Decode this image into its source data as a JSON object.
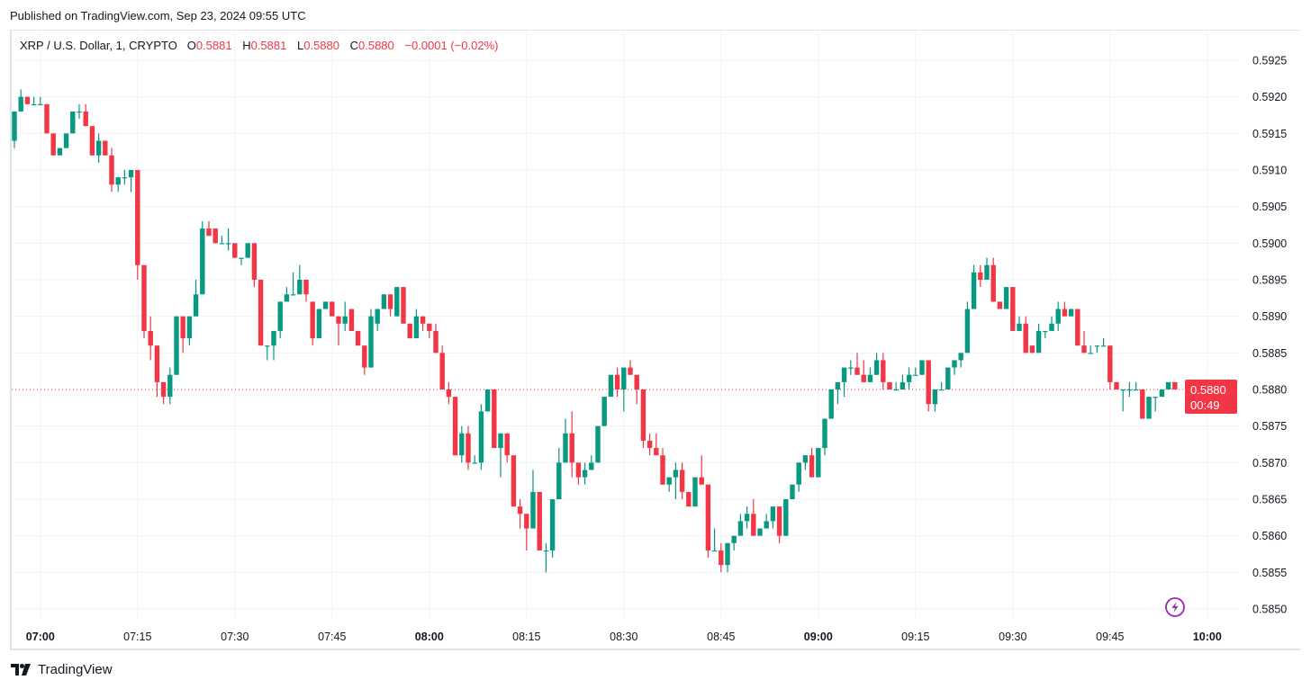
{
  "published": "Published on TradingView.com, Sep 23, 2024 09:55 UTC",
  "legend": {
    "symbol": "XRP / U.S. Dollar, 1, CRYPTO",
    "o_label": "O",
    "o": "0.5881",
    "h_label": "H",
    "h": "0.5881",
    "l_label": "L",
    "l": "0.5880",
    "c_label": "C",
    "c": "0.5880",
    "change": "−0.0001 (−0.02%)"
  },
  "last_price": {
    "value": "0.5880",
    "countdown": "00:49"
  },
  "brand": "TradingView",
  "colors": {
    "up": "#089981",
    "down": "#f23645",
    "grid": "#f0f3fa",
    "lightning": "#9c27b0"
  },
  "icons": {
    "lightning": "lightning-icon",
    "logo": "tradingview-logo-icon"
  },
  "chart_data": {
    "type": "candlestick",
    "interval": "1",
    "grid": true,
    "ylim": [
      0.585,
      0.5925
    ],
    "y_ticks": [
      "0.5925",
      "0.5920",
      "0.5915",
      "0.5910",
      "0.5905",
      "0.5900",
      "0.5895",
      "0.5890",
      "0.5885",
      "0.5880",
      "0.5875",
      "0.5870",
      "0.5865",
      "0.5860",
      "0.5855",
      "0.5850"
    ],
    "x_ticks": [
      {
        "label": "07:00",
        "bold": true
      },
      {
        "label": "07:15",
        "bold": false
      },
      {
        "label": "07:30",
        "bold": false
      },
      {
        "label": "07:45",
        "bold": false
      },
      {
        "label": "08:00",
        "bold": true
      },
      {
        "label": "08:15",
        "bold": false
      },
      {
        "label": "08:30",
        "bold": false
      },
      {
        "label": "08:45",
        "bold": false
      },
      {
        "label": "09:00",
        "bold": true
      },
      {
        "label": "09:15",
        "bold": false
      },
      {
        "label": "09:30",
        "bold": false
      },
      {
        "label": "09:45",
        "bold": false
      },
      {
        "label": "10:00",
        "bold": true
      }
    ],
    "columns": [
      "time",
      "open",
      "high",
      "low",
      "close"
    ],
    "candles": [
      [
        "06:56",
        0.5914,
        0.5918,
        0.5913,
        0.5918
      ],
      [
        "06:57",
        0.5918,
        0.5921,
        0.5918,
        0.592
      ],
      [
        "06:58",
        0.592,
        0.592,
        0.5919,
        0.5919
      ],
      [
        "06:59",
        0.5919,
        0.592,
        0.5919,
        0.5919
      ],
      [
        "07:00",
        0.5919,
        0.592,
        0.5919,
        0.5919
      ],
      [
        "07:01",
        0.5919,
        0.5919,
        0.5915,
        0.5915
      ],
      [
        "07:02",
        0.5915,
        0.5915,
        0.5912,
        0.5912
      ],
      [
        "07:03",
        0.5912,
        0.5913,
        0.5912,
        0.5913
      ],
      [
        "07:04",
        0.5913,
        0.5915,
        0.5913,
        0.5915
      ],
      [
        "07:05",
        0.5915,
        0.5918,
        0.5915,
        0.5918
      ],
      [
        "07:06",
        0.5918,
        0.5919,
        0.5917,
        0.5918
      ],
      [
        "07:07",
        0.5918,
        0.5919,
        0.5916,
        0.5916
      ],
      [
        "07:08",
        0.5916,
        0.5916,
        0.5912,
        0.5912
      ],
      [
        "07:09",
        0.5912,
        0.5915,
        0.5911,
        0.5914
      ],
      [
        "07:10",
        0.5914,
        0.5914,
        0.5912,
        0.5912
      ],
      [
        "07:11",
        0.5912,
        0.5913,
        0.5907,
        0.5908
      ],
      [
        "07:12",
        0.5908,
        0.5909,
        0.5907,
        0.5909
      ],
      [
        "07:13",
        0.5909,
        0.591,
        0.5908,
        0.5909
      ],
      [
        "07:14",
        0.5909,
        0.591,
        0.5907,
        0.591
      ],
      [
        "07:15",
        0.591,
        0.591,
        0.5895,
        0.5897
      ],
      [
        "07:16",
        0.5897,
        0.5897,
        0.5887,
        0.5888
      ],
      [
        "07:17",
        0.5888,
        0.589,
        0.5884,
        0.5886
      ],
      [
        "07:18",
        0.5886,
        0.5886,
        0.5879,
        0.5881
      ],
      [
        "07:19",
        0.5881,
        0.5881,
        0.5878,
        0.5879
      ],
      [
        "07:20",
        0.5879,
        0.5883,
        0.5878,
        0.5882
      ],
      [
        "07:21",
        0.5882,
        0.589,
        0.5882,
        0.589
      ],
      [
        "07:22",
        0.589,
        0.589,
        0.5885,
        0.5887
      ],
      [
        "07:23",
        0.5887,
        0.589,
        0.5886,
        0.589
      ],
      [
        "07:24",
        0.589,
        0.5895,
        0.589,
        0.5893
      ],
      [
        "07:25",
        0.5893,
        0.5903,
        0.5893,
        0.5902
      ],
      [
        "07:26",
        0.5902,
        0.5903,
        0.5901,
        0.5901
      ],
      [
        "07:27",
        0.5902,
        0.5902,
        0.59,
        0.59
      ],
      [
        "07:28",
        0.59,
        0.5901,
        0.59,
        0.59
      ],
      [
        "07:29",
        0.59,
        0.5902,
        0.5899,
        0.59
      ],
      [
        "07:30",
        0.59,
        0.59,
        0.5898,
        0.5898
      ],
      [
        "07:31",
        0.5898,
        0.5898,
        0.5897,
        0.5898
      ],
      [
        "07:32",
        0.5898,
        0.59,
        0.5898,
        0.59
      ],
      [
        "07:33",
        0.59,
        0.59,
        0.5894,
        0.5895
      ],
      [
        "07:34",
        0.5895,
        0.5895,
        0.5886,
        0.5886
      ],
      [
        "07:35",
        0.5886,
        0.5886,
        0.5884,
        0.5886
      ],
      [
        "07:36",
        0.5886,
        0.5888,
        0.5884,
        0.5888
      ],
      [
        "07:37",
        0.5888,
        0.5892,
        0.5887,
        0.5892
      ],
      [
        "07:38",
        0.5892,
        0.5894,
        0.5892,
        0.5893
      ],
      [
        "07:39",
        0.5893,
        0.5896,
        0.5893,
        0.5893
      ],
      [
        "07:40",
        0.5893,
        0.5897,
        0.5893,
        0.5895
      ],
      [
        "07:41",
        0.5895,
        0.5895,
        0.5892,
        0.5893
      ],
      [
        "07:42",
        0.5892,
        0.5892,
        0.5886,
        0.5887
      ],
      [
        "07:43",
        0.5887,
        0.5891,
        0.5887,
        0.5891
      ],
      [
        "07:44",
        0.5891,
        0.5892,
        0.5891,
        0.5892
      ],
      [
        "07:45",
        0.5892,
        0.5892,
        0.589,
        0.589
      ],
      [
        "07:46",
        0.589,
        0.589,
        0.5886,
        0.5889
      ],
      [
        "07:47",
        0.5889,
        0.5892,
        0.5888,
        0.589
      ],
      [
        "07:48",
        0.5891,
        0.5891,
        0.5888,
        0.5888
      ],
      [
        "07:49",
        0.5888,
        0.5888,
        0.5886,
        0.5886
      ],
      [
        "07:50",
        0.5886,
        0.5886,
        0.5882,
        0.5883
      ],
      [
        "07:51",
        0.5883,
        0.5891,
        0.5883,
        0.589
      ],
      [
        "07:52",
        0.5889,
        0.5891,
        0.5888,
        0.5891
      ],
      [
        "07:53",
        0.5891,
        0.5893,
        0.5891,
        0.5893
      ],
      [
        "07:54",
        0.5893,
        0.5893,
        0.589,
        0.5891
      ],
      [
        "07:55",
        0.589,
        0.5894,
        0.589,
        0.5894
      ],
      [
        "07:56",
        0.5894,
        0.5894,
        0.5889,
        0.5889
      ],
      [
        "07:57",
        0.5889,
        0.5889,
        0.5887,
        0.5887
      ],
      [
        "07:58",
        0.5887,
        0.5891,
        0.5887,
        0.589
      ],
      [
        "07:59",
        0.589,
        0.589,
        0.5888,
        0.5889
      ],
      [
        "08:00",
        0.5889,
        0.5889,
        0.5887,
        0.5888
      ],
      [
        "08:01",
        0.5888,
        0.5889,
        0.5885,
        0.5885
      ],
      [
        "08:02",
        0.5885,
        0.5886,
        0.588,
        0.588
      ],
      [
        "08:03",
        0.588,
        0.5881,
        0.5878,
        0.5879
      ],
      [
        "08:04",
        0.5879,
        0.5879,
        0.5871,
        0.5871
      ],
      [
        "08:05",
        0.5871,
        0.5875,
        0.587,
        0.5874
      ],
      [
        "08:06",
        0.5874,
        0.5875,
        0.5869,
        0.587
      ],
      [
        "08:07",
        0.587,
        0.5871,
        0.587,
        0.587
      ],
      [
        "08:08",
        0.587,
        0.5878,
        0.5869,
        0.5877
      ],
      [
        "08:09",
        0.5877,
        0.588,
        0.5877,
        0.588
      ],
      [
        "08:10",
        0.588,
        0.588,
        0.5872,
        0.5872
      ],
      [
        "08:11",
        0.5872,
        0.5874,
        0.5868,
        0.5874
      ],
      [
        "08:12",
        0.5874,
        0.5874,
        0.587,
        0.5871
      ],
      [
        "08:13",
        0.5871,
        0.5871,
        0.5864,
        0.5864
      ],
      [
        "08:14",
        0.5864,
        0.5865,
        0.5861,
        0.5863
      ],
      [
        "08:15",
        0.5863,
        0.5863,
        0.5858,
        0.5861
      ],
      [
        "08:16",
        0.5861,
        0.5869,
        0.5861,
        0.5866
      ],
      [
        "08:17",
        0.5866,
        0.5866,
        0.5858,
        0.5858
      ],
      [
        "08:18",
        0.5858,
        0.5859,
        0.5855,
        0.5858
      ],
      [
        "08:19",
        0.5858,
        0.5865,
        0.5857,
        0.5865
      ],
      [
        "08:20",
        0.5865,
        0.5872,
        0.5865,
        0.587
      ],
      [
        "08:21",
        0.587,
        0.5876,
        0.587,
        0.5874
      ],
      [
        "08:22",
        0.5874,
        0.5877,
        0.5868,
        0.587
      ],
      [
        "08:23",
        0.587,
        0.587,
        0.5867,
        0.5868
      ],
      [
        "08:24",
        0.5868,
        0.587,
        0.5867,
        0.5869
      ],
      [
        "08:25",
        0.5869,
        0.5871,
        0.5869,
        0.587
      ],
      [
        "08:26",
        0.587,
        0.5875,
        0.587,
        0.5875
      ],
      [
        "08:27",
        0.5875,
        0.5879,
        0.5875,
        0.5879
      ],
      [
        "08:28",
        0.5879,
        0.5882,
        0.5879,
        0.5882
      ],
      [
        "08:29",
        0.5882,
        0.5883,
        0.5879,
        0.588
      ],
      [
        "08:30",
        0.588,
        0.5883,
        0.5877,
        0.5883
      ],
      [
        "08:31",
        0.5883,
        0.5884,
        0.5882,
        0.5882
      ],
      [
        "08:32",
        0.5882,
        0.5882,
        0.5878,
        0.588
      ],
      [
        "08:33",
        0.588,
        0.588,
        0.5872,
        0.5873
      ],
      [
        "08:34",
        0.5873,
        0.5874,
        0.5871,
        0.5872
      ],
      [
        "08:35",
        0.5872,
        0.5874,
        0.5871,
        0.5871
      ],
      [
        "08:36",
        0.5871,
        0.5872,
        0.5867,
        0.5867
      ],
      [
        "08:37",
        0.5867,
        0.5868,
        0.5866,
        0.5868
      ],
      [
        "08:38",
        0.5868,
        0.587,
        0.5865,
        0.5869
      ],
      [
        "08:39",
        0.5869,
        0.587,
        0.5865,
        0.5866
      ],
      [
        "08:40",
        0.5866,
        0.5866,
        0.5864,
        0.5864
      ],
      [
        "08:41",
        0.5864,
        0.5868,
        0.5864,
        0.5868
      ],
      [
        "08:42",
        0.5868,
        0.5871,
        0.5867,
        0.5867
      ],
      [
        "08:43",
        0.5867,
        0.5867,
        0.5857,
        0.5858
      ],
      [
        "08:44",
        0.5858,
        0.5861,
        0.5858,
        0.5858
      ],
      [
        "08:45",
        0.5858,
        0.5859,
        0.5855,
        0.5856
      ],
      [
        "08:46",
        0.5856,
        0.5859,
        0.5855,
        0.5859
      ],
      [
        "08:47",
        0.5859,
        0.586,
        0.5858,
        0.586
      ],
      [
        "08:48",
        0.586,
        0.5863,
        0.586,
        0.5862
      ],
      [
        "08:49",
        0.5862,
        0.5864,
        0.5861,
        0.5863
      ],
      [
        "08:50",
        0.5863,
        0.5865,
        0.586,
        0.586
      ],
      [
        "08:51",
        0.586,
        0.5861,
        0.586,
        0.5861
      ],
      [
        "08:52",
        0.5861,
        0.5863,
        0.5861,
        0.5862
      ],
      [
        "08:53",
        0.5862,
        0.5864,
        0.5861,
        0.5864
      ],
      [
        "08:54",
        0.5864,
        0.5864,
        0.5859,
        0.586
      ],
      [
        "08:55",
        0.586,
        0.5865,
        0.586,
        0.5865
      ],
      [
        "08:56",
        0.5865,
        0.5867,
        0.5865,
        0.5867
      ],
      [
        "08:57",
        0.5867,
        0.587,
        0.5866,
        0.587
      ],
      [
        "08:58",
        0.587,
        0.5871,
        0.5869,
        0.5871
      ],
      [
        "08:59",
        0.5871,
        0.5872,
        0.5868,
        0.5868
      ],
      [
        "09:00",
        0.5868,
        0.5872,
        0.5868,
        0.5872
      ],
      [
        "09:01",
        0.5872,
        0.5876,
        0.5871,
        0.5876
      ],
      [
        "09:02",
        0.5876,
        0.588,
        0.5876,
        0.588
      ],
      [
        "09:03",
        0.588,
        0.5881,
        0.5878,
        0.5881
      ],
      [
        "09:04",
        0.5881,
        0.5883,
        0.5879,
        0.5883
      ],
      [
        "09:05",
        0.5883,
        0.5884,
        0.5882,
        0.5883
      ],
      [
        "09:06",
        0.5883,
        0.5885,
        0.5882,
        0.5882
      ],
      [
        "09:07",
        0.5882,
        0.5884,
        0.5881,
        0.5881
      ],
      [
        "09:08",
        0.5881,
        0.5883,
        0.5881,
        0.5882
      ],
      [
        "09:09",
        0.5882,
        0.5885,
        0.5882,
        0.5884
      ],
      [
        "09:10",
        0.5884,
        0.5885,
        0.588,
        0.5881
      ],
      [
        "09:11",
        0.5881,
        0.5881,
        0.588,
        0.588
      ],
      [
        "09:12",
        0.588,
        0.5881,
        0.588,
        0.588
      ],
      [
        "09:13",
        0.588,
        0.5882,
        0.588,
        0.5881
      ],
      [
        "09:14",
        0.5881,
        0.5883,
        0.588,
        0.5882
      ],
      [
        "09:15",
        0.5882,
        0.5883,
        0.5882,
        0.5882
      ],
      [
        "09:16",
        0.5882,
        0.5884,
        0.5882,
        0.5884
      ],
      [
        "09:17",
        0.5884,
        0.5884,
        0.5877,
        0.5878
      ],
      [
        "09:18",
        0.5878,
        0.588,
        0.5877,
        0.588
      ],
      [
        "09:19",
        0.588,
        0.5881,
        0.588,
        0.588
      ],
      [
        "09:20",
        0.588,
        0.5883,
        0.588,
        0.5883
      ],
      [
        "09:21",
        0.5883,
        0.5884,
        0.5882,
        0.5884
      ],
      [
        "09:22",
        0.5884,
        0.5885,
        0.5883,
        0.5885
      ],
      [
        "09:23",
        0.5885,
        0.5892,
        0.5885,
        0.5891
      ],
      [
        "09:24",
        0.5891,
        0.5897,
        0.5891,
        0.5896
      ],
      [
        "09:25",
        0.5896,
        0.5897,
        0.5894,
        0.5895
      ],
      [
        "09:26",
        0.5895,
        0.5898,
        0.5895,
        0.5897
      ],
      [
        "09:27",
        0.5897,
        0.5898,
        0.5892,
        0.5892
      ],
      [
        "09:28",
        0.5892,
        0.5892,
        0.5891,
        0.5891
      ],
      [
        "09:29",
        0.5891,
        0.5894,
        0.5891,
        0.5894
      ],
      [
        "09:30",
        0.5894,
        0.5894,
        0.5888,
        0.5888
      ],
      [
        "09:31",
        0.5888,
        0.589,
        0.5888,
        0.5889
      ],
      [
        "09:32",
        0.5889,
        0.589,
        0.5885,
        0.5885
      ],
      [
        "09:33",
        0.5886,
        0.5886,
        0.5885,
        0.5885
      ],
      [
        "09:34",
        0.5885,
        0.5889,
        0.5885,
        0.5888
      ],
      [
        "09:35",
        0.5888,
        0.5888,
        0.5887,
        0.5888
      ],
      [
        "09:36",
        0.5888,
        0.589,
        0.5888,
        0.5889
      ],
      [
        "09:37",
        0.5889,
        0.5892,
        0.5888,
        0.5891
      ],
      [
        "09:38",
        0.5891,
        0.5892,
        0.589,
        0.589
      ],
      [
        "09:39",
        0.589,
        0.5891,
        0.589,
        0.5891
      ],
      [
        "09:40",
        0.5891,
        0.5891,
        0.5886,
        0.5886
      ],
      [
        "09:41",
        0.5886,
        0.5888,
        0.5885,
        0.5885
      ],
      [
        "09:42",
        0.5885,
        0.5886,
        0.5885,
        0.5885
      ],
      [
        "09:43",
        0.5886,
        0.5886,
        0.5885,
        0.5886
      ],
      [
        "09:44",
        0.5886,
        0.5887,
        0.5886,
        0.5886
      ],
      [
        "09:45",
        0.5886,
        0.5886,
        0.588,
        0.5881
      ],
      [
        "09:46",
        0.5881,
        0.5881,
        0.588,
        0.588
      ],
      [
        "09:47",
        0.588,
        0.588,
        0.5877,
        0.588
      ],
      [
        "09:48",
        0.588,
        0.5881,
        0.5879,
        0.588
      ],
      [
        "09:49",
        0.588,
        0.5881,
        0.588,
        0.588
      ],
      [
        "09:50",
        0.588,
        0.588,
        0.5876,
        0.5876
      ],
      [
        "09:51",
        0.5876,
        0.5879,
        0.5876,
        0.5879
      ],
      [
        "09:52",
        0.5879,
        0.5879,
        0.5877,
        0.5879
      ],
      [
        "09:53",
        0.5879,
        0.588,
        0.5879,
        0.588
      ],
      [
        "09:54",
        0.588,
        0.5881,
        0.588,
        0.5881
      ],
      [
        "09:55",
        0.5881,
        0.5881,
        0.588,
        0.588
      ]
    ]
  }
}
